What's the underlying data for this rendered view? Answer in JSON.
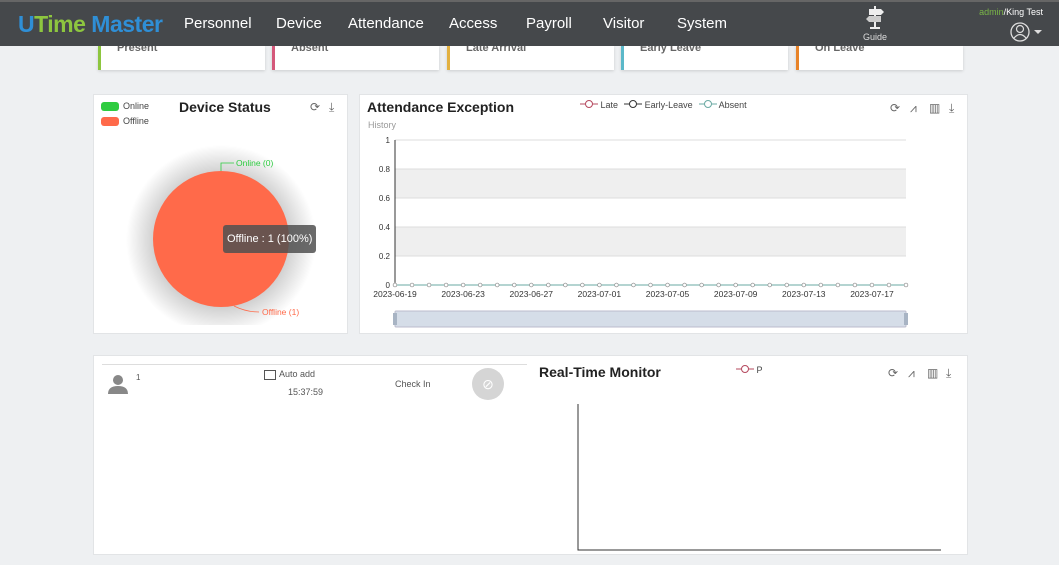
{
  "header": {
    "logo": {
      "u": "U",
      "time": "Time",
      "master": " Master"
    },
    "menu": [
      "Personnel",
      "Device",
      "Attendance",
      "Access",
      "Payroll",
      "Visitor",
      "System"
    ],
    "guide_label": "Guide",
    "user_role": "admin",
    "user_name": "/King Test"
  },
  "summary_cards": [
    {
      "label": "Present",
      "color": "#8dc63f"
    },
    {
      "label": "Absent",
      "color": "#d4587a"
    },
    {
      "label": "Late Arrival",
      "color": "#e2b040"
    },
    {
      "label": "Early Leave",
      "color": "#5bb8c9"
    },
    {
      "label": "On Leave",
      "color": "#e8842a"
    }
  ],
  "device_status": {
    "title": "Device Status",
    "legend": [
      {
        "label": "Online",
        "color": "#2ecc40"
      },
      {
        "label": "Offline",
        "color": "#ff6a4a"
      }
    ],
    "online_label": "Online (0)",
    "offline_label": "Offline (1)",
    "tooltip": "Offline : 1 (100%)"
  },
  "attendance_exception": {
    "title": "Attendance Exception",
    "subtitle": "History",
    "legend": [
      {
        "label": "Late",
        "color": "#b5485e"
      },
      {
        "label": "Early-Leave",
        "color": "#333333"
      },
      {
        "label": "Absent",
        "color": "#6aa9a3"
      }
    ]
  },
  "chart_data": [
    {
      "type": "pie",
      "title": "Device Status",
      "categories": [
        "Online",
        "Offline"
      ],
      "values": [
        0,
        1
      ]
    },
    {
      "type": "line",
      "title": "Attendance Exception",
      "x_start": "2023-06-19",
      "x_end": "2023-07-19",
      "x_tick_labels": [
        "2023-06-19",
        "2023-06-23",
        "2023-06-27",
        "2023-07-01",
        "2023-07-05",
        "2023-07-09",
        "2023-07-13",
        "2023-07-17"
      ],
      "y_tick_labels": [
        "0",
        "0.2",
        "0.4",
        "0.6",
        "0.8",
        "1"
      ],
      "ylim": [
        0,
        1
      ],
      "series": [
        {
          "name": "Late",
          "values": [
            0,
            0,
            0,
            0,
            0,
            0,
            0,
            0,
            0,
            0,
            0,
            0,
            0,
            0,
            0,
            0,
            0,
            0,
            0,
            0,
            0,
            0,
            0,
            0,
            0,
            0,
            0,
            0,
            0,
            0,
            0
          ]
        },
        {
          "name": "Early-Leave",
          "values": [
            0,
            0,
            0,
            0,
            0,
            0,
            0,
            0,
            0,
            0,
            0,
            0,
            0,
            0,
            0,
            0,
            0,
            0,
            0,
            0,
            0,
            0,
            0,
            0,
            0,
            0,
            0,
            0,
            0,
            0,
            0
          ]
        },
        {
          "name": "Absent",
          "values": [
            0,
            0,
            0,
            0,
            0,
            0,
            0,
            0,
            0,
            0,
            0,
            0,
            0,
            0,
            0,
            0,
            0,
            0,
            0,
            0,
            0,
            0,
            0,
            0,
            0,
            0,
            0,
            0,
            0,
            0,
            0
          ]
        }
      ]
    },
    {
      "type": "line",
      "title": "Real-Time Monitor",
      "series": [
        {
          "name": "P",
          "values": []
        }
      ]
    }
  ],
  "realtime": {
    "title": "Real-Time Monitor",
    "legend": "P",
    "record": {
      "id": "1",
      "device": "Auto add",
      "time": "15:37:59",
      "state": "Check In"
    }
  }
}
